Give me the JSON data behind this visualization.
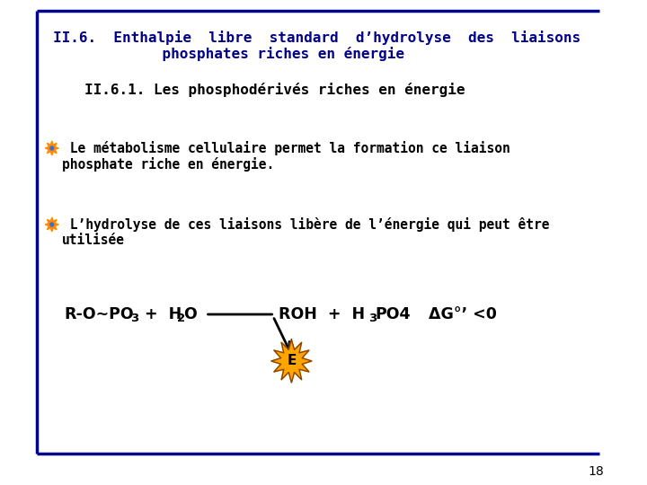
{
  "bg_color": "#ffffff",
  "border_color": "#00008b",
  "title_line1": "II.6.  Enthalpie  libre  standard  d’hydrolyse  des  liaisons",
  "title_line2": "    phosphates riches en énergie",
  "subtitle": "II.6.1. Les phosphodérivés riches en énergie",
  "bullet1_line1": " Le métabolisme cellulaire permet la formation ce liaison",
  "bullet1_line2": "phosphate riche en énergie.",
  "bullet2_line1": " L’hydrolyse de ces liaisons libère de l’énergie qui peut être",
  "bullet2_line2": "utilisée",
  "page_number": "18",
  "title_color": "#00008b",
  "subtitle_color": "#000000",
  "body_color": "#000000",
  "equation_color": "#000000",
  "arrow_color": "#000000",
  "explosion_fill": "#ffa500",
  "explosion_border": "#8b4500",
  "explosion_text": "E",
  "explosion_text_color": "#000000",
  "bullet_outer": "#ff8c00",
  "bullet_inner": "#4169e1"
}
